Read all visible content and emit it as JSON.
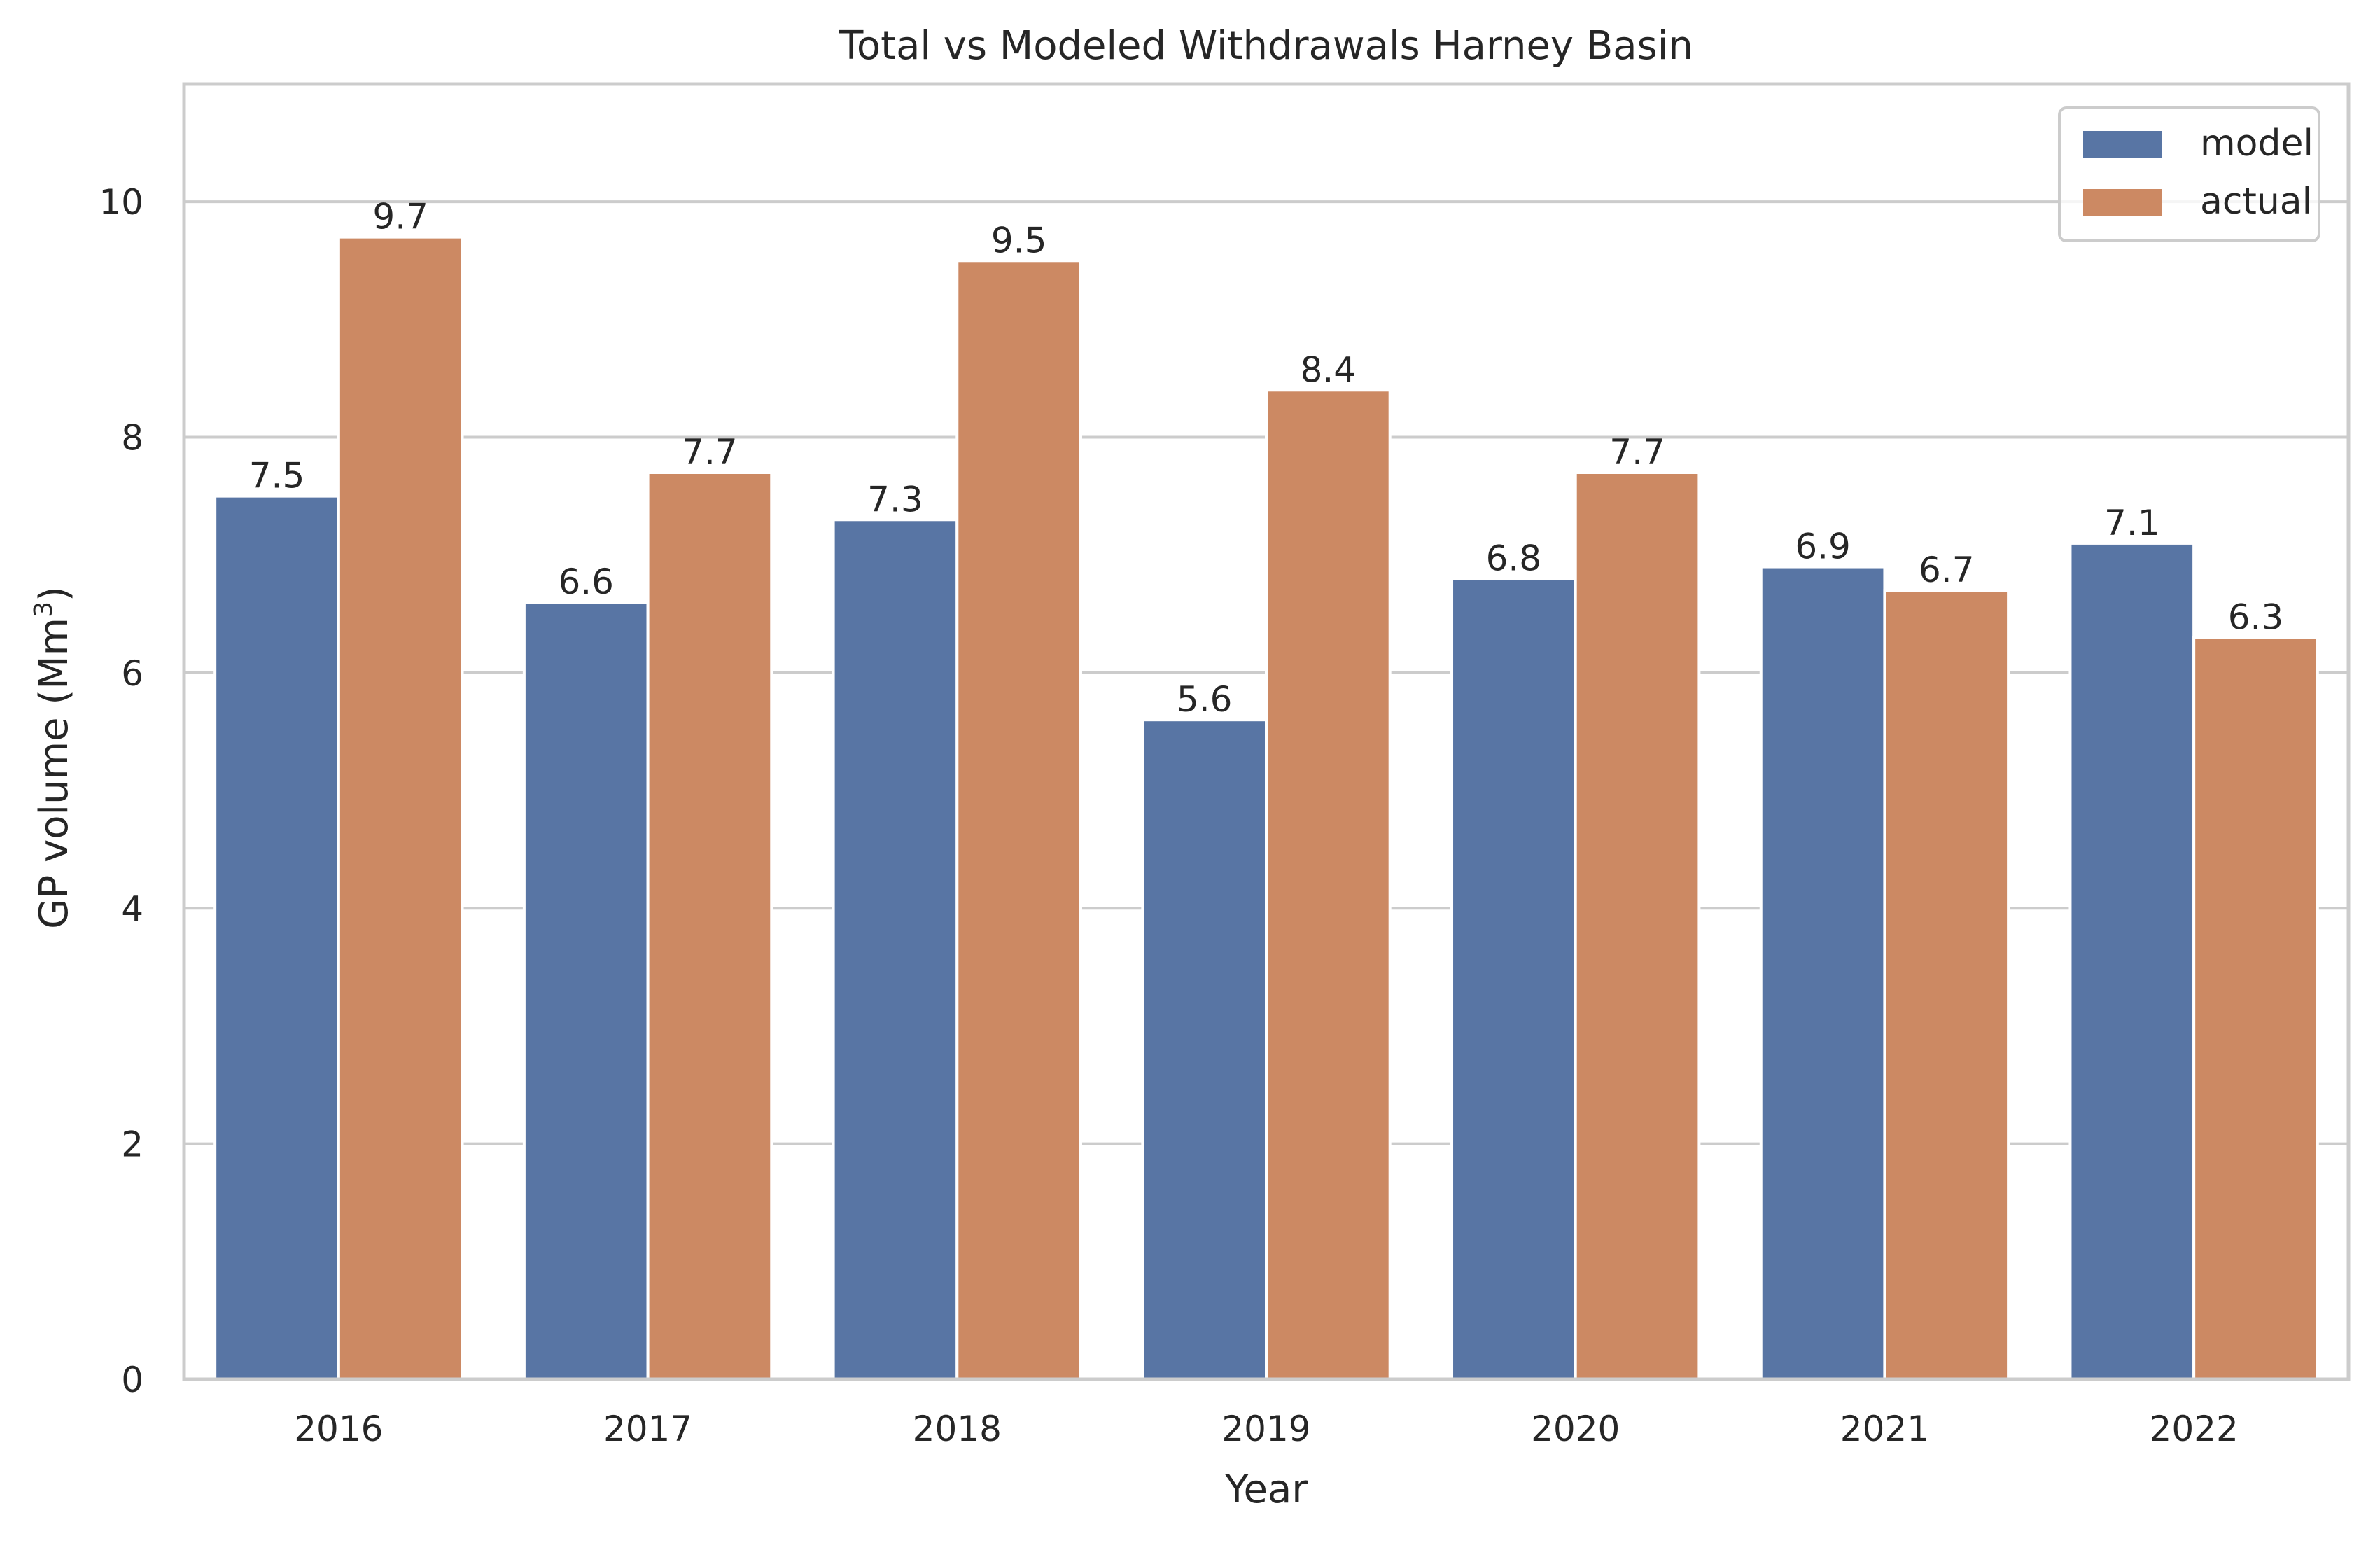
{
  "chart_data": {
    "type": "bar",
    "title": "Total vs Modeled Withdrawals Harney Basin",
    "xlabel": "Year",
    "ylabel": "GP volume (Mm",
    "ylabel_sup": "3",
    "ylabel_suffix": ")",
    "categories": [
      "2016",
      "2017",
      "2018",
      "2019",
      "2020",
      "2021",
      "2022"
    ],
    "series": [
      {
        "name": "model",
        "color": "#5875a4",
        "values": [
          7.5,
          6.6,
          7.3,
          5.6,
          6.8,
          6.9,
          7.1
        ],
        "labels": [
          "7.5",
          "6.6",
          "7.3",
          "5.6",
          "6.8",
          "6.9",
          "7.1"
        ]
      },
      {
        "name": "actual",
        "color": "#cc8963",
        "values": [
          9.7,
          7.7,
          9.5,
          8.4,
          7.7,
          6.7,
          6.3
        ],
        "labels": [
          "9.7",
          "7.7",
          "9.5",
          "8.4",
          "7.7",
          "6.7",
          "6.3"
        ]
      }
    ],
    "ylim": [
      0,
      11
    ],
    "yticks": [
      "0",
      "2",
      "4",
      "6",
      "8",
      "10"
    ],
    "grid": "horizontal",
    "legend_position": "top-right"
  }
}
